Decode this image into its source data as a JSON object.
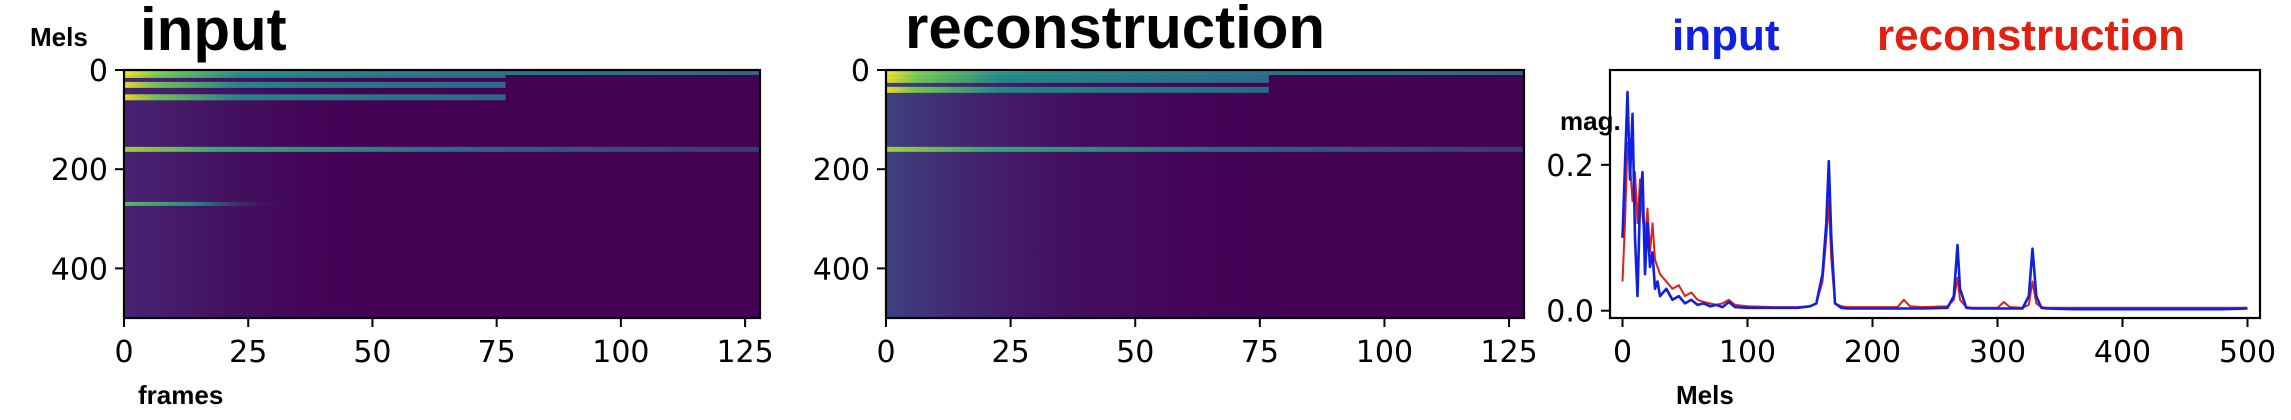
{
  "chart_data": [
    {
      "type": "heatmap",
      "title": "input",
      "ylabel": "Mels",
      "xlabel": "frames",
      "xlim": [
        0,
        128
      ],
      "ylim": [
        500,
        0
      ],
      "xticks": [
        0,
        25,
        50,
        75,
        100,
        125
      ],
      "yticks": [
        0,
        200,
        400
      ],
      "colormap": "viridis",
      "bright_bands_mels": [
        0,
        10,
        30,
        55,
        160,
        270
      ],
      "dark_region_note_values": []
    },
    {
      "type": "heatmap",
      "title": "reconstruction",
      "xlim": [
        0,
        128
      ],
      "ylim": [
        500,
        0
      ],
      "xticks": [
        0,
        25,
        50,
        75,
        100,
        125
      ],
      "yticks": [
        0,
        200,
        400
      ],
      "colormap": "viridis",
      "bright_bands_mels": [
        0,
        10,
        20,
        40,
        160
      ]
    },
    {
      "type": "line",
      "xlabel": "Mels",
      "ylabel": "mag.",
      "xlim": [
        -10,
        510
      ],
      "ylim": [
        -0.01,
        0.33
      ],
      "xticks": [
        0,
        100,
        200,
        300,
        400,
        500
      ],
      "yticks": [
        0.0,
        0.2
      ],
      "yticklabels": [
        "0.0",
        "0.2"
      ],
      "legend_position": "top",
      "series": [
        {
          "name": "input",
          "color": "#1020e0",
          "x": [
            0,
            2,
            4,
            6,
            8,
            10,
            12,
            14,
            16,
            18,
            20,
            22,
            24,
            26,
            28,
            30,
            35,
            40,
            45,
            50,
            55,
            60,
            65,
            70,
            75,
            80,
            85,
            90,
            100,
            120,
            140,
            150,
            155,
            160,
            163,
            165,
            167,
            170,
            175,
            180,
            200,
            220,
            240,
            260,
            265,
            268,
            270,
            275,
            280,
            300,
            320,
            325,
            328,
            331,
            335,
            340,
            360,
            380,
            400,
            420,
            440,
            460,
            480,
            500
          ],
          "values": [
            0.1,
            0.2,
            0.3,
            0.18,
            0.27,
            0.1,
            0.02,
            0.15,
            0.19,
            0.05,
            0.12,
            0.06,
            0.08,
            0.03,
            0.04,
            0.02,
            0.03,
            0.015,
            0.02,
            0.01,
            0.015,
            0.008,
            0.01,
            0.006,
            0.008,
            0.005,
            0.012,
            0.005,
            0.004,
            0.004,
            0.004,
            0.006,
            0.01,
            0.05,
            0.12,
            0.205,
            0.1,
            0.01,
            0.004,
            0.003,
            0.003,
            0.003,
            0.003,
            0.004,
            0.02,
            0.09,
            0.03,
            0.004,
            0.003,
            0.003,
            0.003,
            0.02,
            0.085,
            0.02,
            0.004,
            0.003,
            0.002,
            0.002,
            0.002,
            0.002,
            0.002,
            0.002,
            0.002,
            0.003
          ]
        },
        {
          "name": "reconstruction",
          "color": "#e02010",
          "x": [
            0,
            2,
            4,
            6,
            8,
            10,
            12,
            14,
            16,
            18,
            20,
            22,
            24,
            26,
            28,
            30,
            35,
            40,
            45,
            50,
            55,
            60,
            65,
            70,
            75,
            80,
            85,
            90,
            100,
            120,
            140,
            150,
            155,
            160,
            163,
            165,
            167,
            170,
            175,
            180,
            200,
            220,
            225,
            230,
            240,
            260,
            265,
            268,
            270,
            275,
            280,
            300,
            305,
            310,
            320,
            325,
            328,
            331,
            335,
            340,
            360,
            380,
            400,
            420,
            440,
            460,
            480,
            500
          ],
          "values": [
            0.04,
            0.12,
            0.23,
            0.2,
            0.15,
            0.19,
            0.12,
            0.18,
            0.13,
            0.1,
            0.14,
            0.08,
            0.12,
            0.07,
            0.06,
            0.05,
            0.04,
            0.03,
            0.035,
            0.02,
            0.025,
            0.015,
            0.012,
            0.01,
            0.008,
            0.01,
            0.015,
            0.008,
            0.006,
            0.005,
            0.005,
            0.006,
            0.01,
            0.04,
            0.1,
            0.15,
            0.07,
            0.01,
            0.006,
            0.005,
            0.005,
            0.005,
            0.015,
            0.006,
            0.005,
            0.006,
            0.015,
            0.045,
            0.015,
            0.005,
            0.004,
            0.004,
            0.012,
            0.005,
            0.004,
            0.008,
            0.04,
            0.01,
            0.005,
            0.004,
            0.004,
            0.004,
            0.004,
            0.004,
            0.004,
            0.004,
            0.004,
            0.004
          ]
        }
      ]
    }
  ]
}
